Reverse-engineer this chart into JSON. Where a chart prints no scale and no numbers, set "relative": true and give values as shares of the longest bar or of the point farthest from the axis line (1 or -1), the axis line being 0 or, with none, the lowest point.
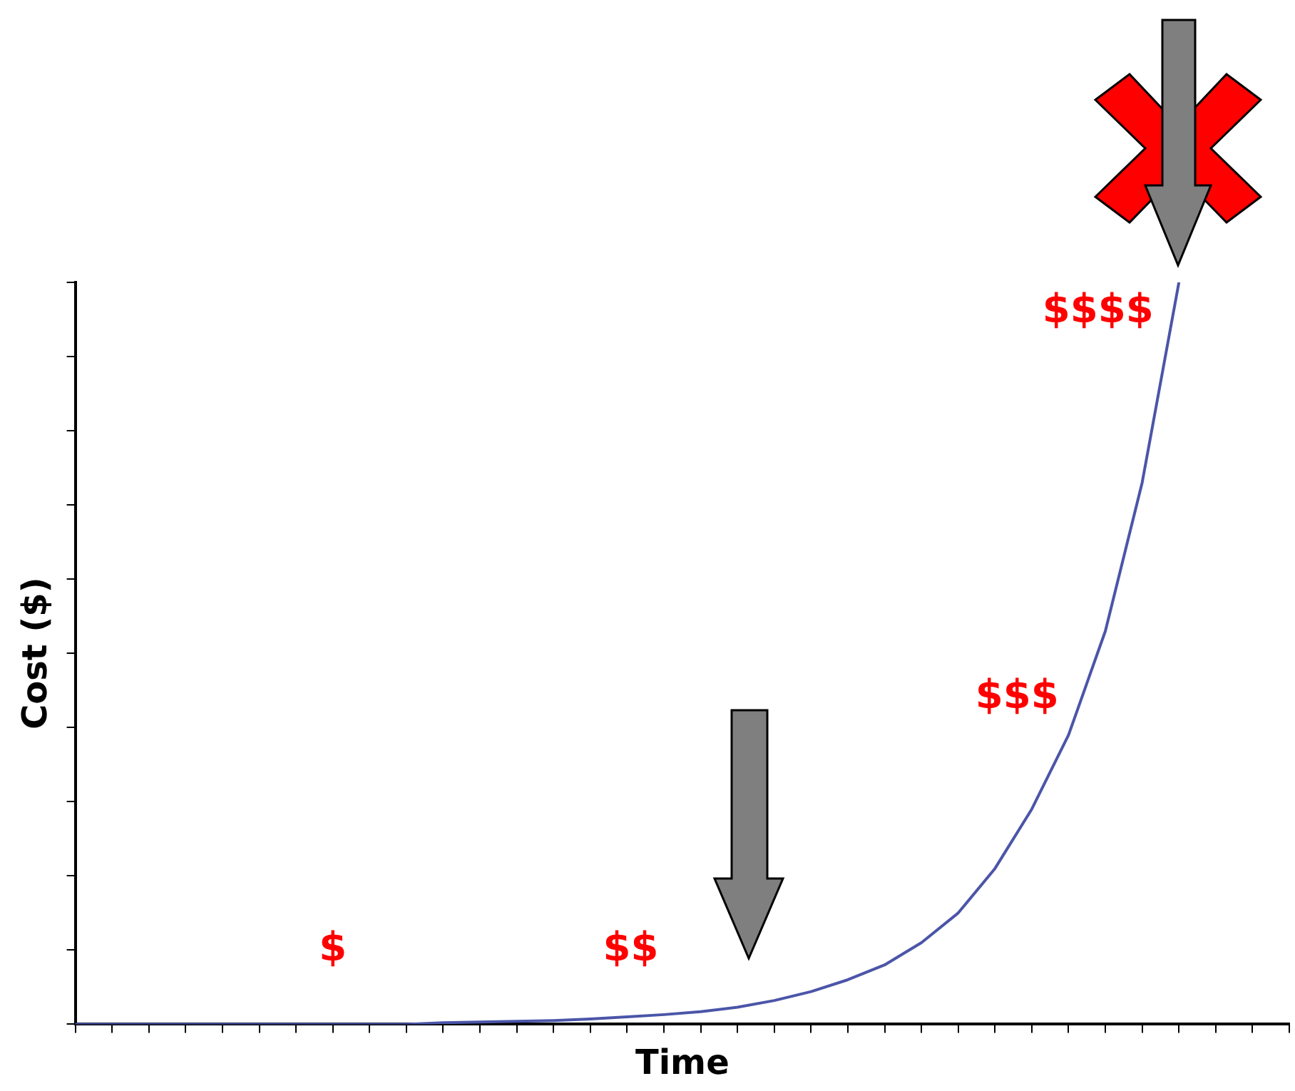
{
  "chart_data": {
    "type": "line",
    "xlabel": "Time",
    "ylabel": "Cost ($)",
    "relative": true,
    "marker": "none",
    "categories": [
      null,
      null,
      null,
      null,
      null,
      null,
      null,
      null,
      null,
      null,
      null,
      null,
      null,
      null,
      null,
      null,
      null,
      null,
      null,
      null,
      null,
      null,
      null,
      null,
      null,
      null,
      null,
      null,
      null,
      null,
      null,
      null,
      null,
      null
    ],
    "series": [
      {
        "color": "#4b55a8",
        "values": [
          0,
          0,
          0,
          0,
          0,
          0,
          0,
          0,
          0,
          0,
          0.002,
          0.003,
          0.004,
          0.005,
          0.007,
          0.01,
          0.013,
          0.017,
          0.023,
          0.032,
          0.044,
          0.06,
          0.08,
          0.11,
          0.15,
          0.21,
          0.29,
          0.39,
          0.53,
          0.73,
          1,
          null,
          null,
          null
        ]
      }
    ],
    "annotations": [
      "$",
      "$$",
      "$$$",
      "$$$$"
    ]
  }
}
